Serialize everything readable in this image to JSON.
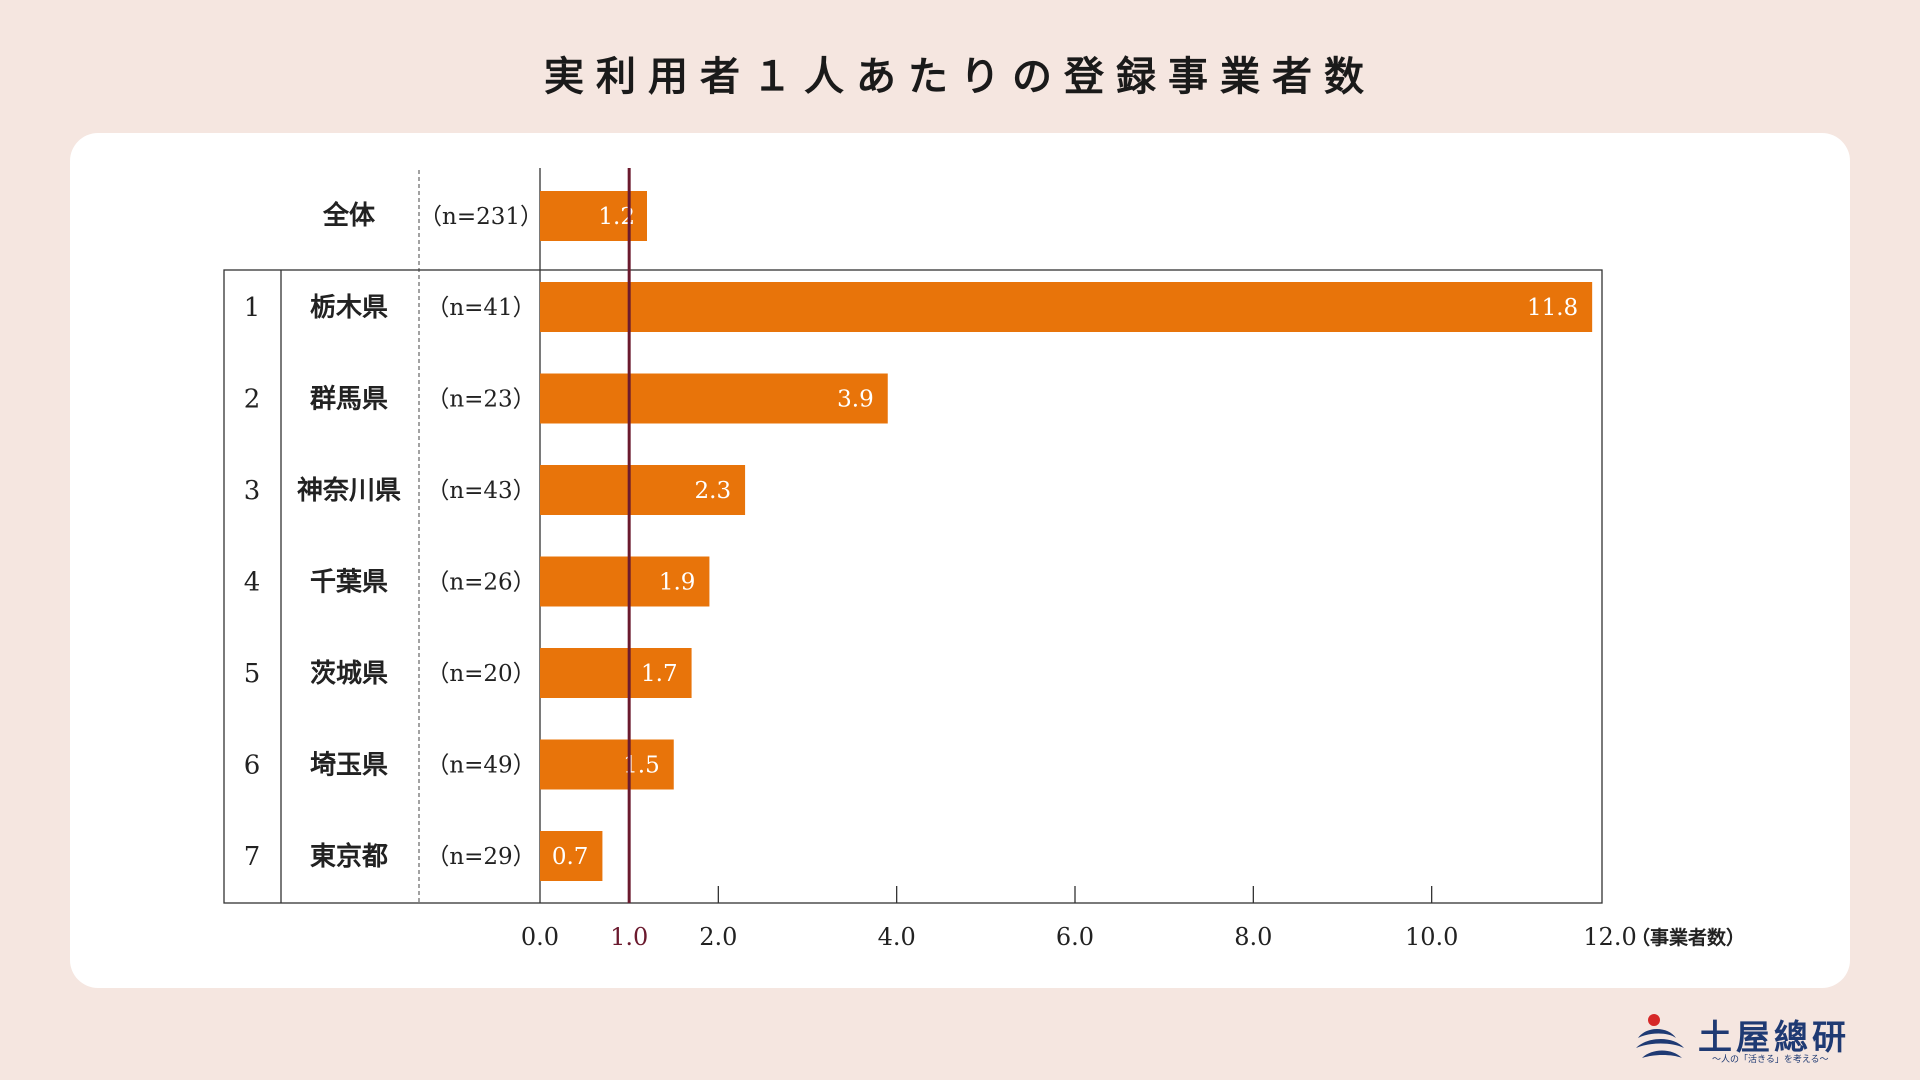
{
  "title": "実利用者１人あたりの登録事業者数",
  "chart_data": {
    "type": "bar",
    "orientation": "horizontal",
    "title": "実利用者１人あたりの登録事業者数",
    "unit_label": "（事業者数）",
    "xlim": [
      0,
      12
    ],
    "x_ticks": [
      "0.0",
      "1.0",
      "2.0",
      "4.0",
      "6.0",
      "8.0",
      "10.0",
      "12.0"
    ],
    "reference_line": {
      "value": 1.0,
      "label": "1.0",
      "color": "#6b1a2e"
    },
    "bar_color": "#e8740a",
    "overall": {
      "label": "全体",
      "n": "（n=231）",
      "value": 1.2,
      "value_label": "1.2"
    },
    "rows": [
      {
        "rank": "1",
        "label": "栃木県",
        "n": "（n=41）",
        "value": 11.8,
        "value_label": "11.8"
      },
      {
        "rank": "2",
        "label": "群馬県",
        "n": "（n=23）",
        "value": 3.9,
        "value_label": "3.9"
      },
      {
        "rank": "3",
        "label": "神奈川県",
        "n": "（n=43）",
        "value": 2.3,
        "value_label": "2.3"
      },
      {
        "rank": "4",
        "label": "千葉県",
        "n": "（n=26）",
        "value": 1.9,
        "value_label": "1.9"
      },
      {
        "rank": "5",
        "label": "茨城県",
        "n": "（n=20）",
        "value": 1.7,
        "value_label": "1.7"
      },
      {
        "rank": "6",
        "label": "埼玉県",
        "n": "（n=49）",
        "value": 1.5,
        "value_label": "1.5"
      },
      {
        "rank": "7",
        "label": "東京都",
        "n": "（n=29）",
        "value": 0.7,
        "value_label": "0.7"
      }
    ]
  },
  "logo": {
    "name": "土屋總研",
    "tagline": "〜人の「活きる」を考える〜",
    "icon": "swirl-logo-icon"
  }
}
